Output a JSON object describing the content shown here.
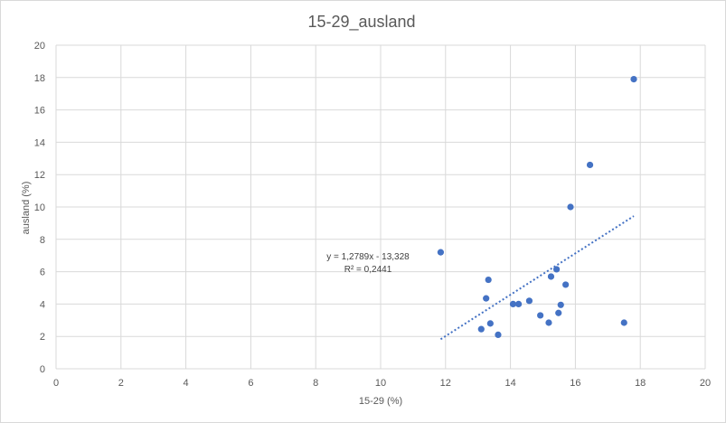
{
  "chart_data": {
    "type": "scatter",
    "title": "15-29_ausland",
    "xlabel": "15-29 (%)",
    "ylabel": "ausland (%)",
    "xlim": [
      0,
      20
    ],
    "ylim": [
      0,
      20
    ],
    "xticks": [
      0,
      2,
      4,
      6,
      8,
      10,
      12,
      14,
      16,
      18,
      20
    ],
    "yticks": [
      0,
      2,
      4,
      6,
      8,
      10,
      12,
      14,
      16,
      18,
      20
    ],
    "grid": true,
    "colors": {
      "points": "#4472c4",
      "trendline": "#4472c4",
      "grid": "#d9d9d9"
    },
    "points": [
      {
        "x": 11.85,
        "y": 7.2
      },
      {
        "x": 13.1,
        "y": 2.45
      },
      {
        "x": 13.25,
        "y": 4.35
      },
      {
        "x": 13.32,
        "y": 5.5
      },
      {
        "x": 13.38,
        "y": 2.8
      },
      {
        "x": 13.62,
        "y": 2.1
      },
      {
        "x": 14.08,
        "y": 4.0
      },
      {
        "x": 14.25,
        "y": 4.0
      },
      {
        "x": 14.58,
        "y": 4.2
      },
      {
        "x": 14.92,
        "y": 3.3
      },
      {
        "x": 15.18,
        "y": 2.85
      },
      {
        "x": 15.25,
        "y": 5.7
      },
      {
        "x": 15.42,
        "y": 6.15
      },
      {
        "x": 15.48,
        "y": 3.45
      },
      {
        "x": 15.55,
        "y": 3.95
      },
      {
        "x": 15.7,
        "y": 5.2
      },
      {
        "x": 15.85,
        "y": 10.0
      },
      {
        "x": 16.45,
        "y": 12.6
      },
      {
        "x": 17.5,
        "y": 2.85
      },
      {
        "x": 17.8,
        "y": 17.9
      }
    ],
    "trendline": {
      "type": "linear",
      "slope": 1.2789,
      "intercept": -13.328,
      "x_range": [
        11.85,
        17.8
      ],
      "equation_label": "y = 1,2789x - 13,328",
      "r2_label": "R² = 0,2441"
    }
  }
}
